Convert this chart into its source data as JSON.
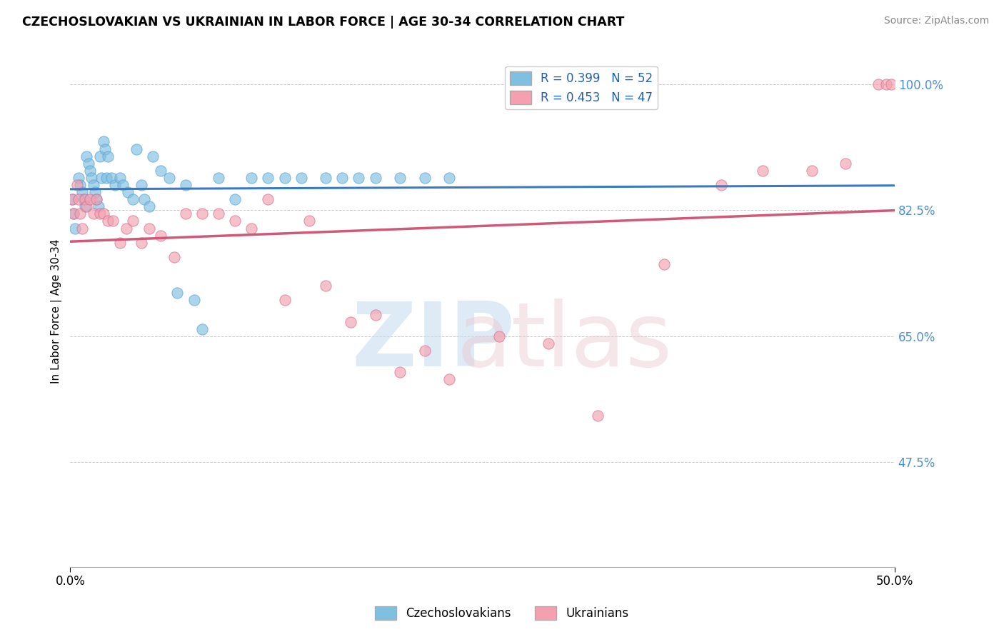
{
  "title": "CZECHOSLOVAKIAN VS UKRAINIAN IN LABOR FORCE | AGE 30-34 CORRELATION CHART",
  "source": "Source: ZipAtlas.com",
  "ylabel": "In Labor Force | Age 30-34",
  "xlim": [
    0.0,
    0.5
  ],
  "ylim": [
    0.33,
    1.04
  ],
  "ytick_positions": [
    0.475,
    0.65,
    0.825,
    1.0
  ],
  "R_czech": 0.399,
  "N_czech": 52,
  "R_ukr": 0.453,
  "N_ukr": 47,
  "czech_color": "#7fbfdf",
  "ukr_color": "#f4a0b0",
  "czech_line_color": "#3a7bbf",
  "ukr_line_color": "#d05878",
  "legend_labels": [
    "Czechoslovakians",
    "Ukrainians"
  ],
  "czech_x": [
    0.001,
    0.002,
    0.003,
    0.005,
    0.006,
    0.007,
    0.008,
    0.009,
    0.01,
    0.011,
    0.012,
    0.013,
    0.014,
    0.015,
    0.016,
    0.017,
    0.018,
    0.019,
    0.02,
    0.021,
    0.022,
    0.023,
    0.025,
    0.027,
    0.03,
    0.032,
    0.035,
    0.038,
    0.04,
    0.043,
    0.045,
    0.048,
    0.05,
    0.055,
    0.06,
    0.065,
    0.07,
    0.075,
    0.08,
    0.09,
    0.1,
    0.11,
    0.12,
    0.13,
    0.14,
    0.155,
    0.165,
    0.175,
    0.185,
    0.2,
    0.215,
    0.23
  ],
  "czech_y": [
    0.84,
    0.82,
    0.8,
    0.87,
    0.86,
    0.85,
    0.84,
    0.83,
    0.9,
    0.89,
    0.88,
    0.87,
    0.86,
    0.85,
    0.84,
    0.83,
    0.9,
    0.87,
    0.92,
    0.91,
    0.87,
    0.9,
    0.87,
    0.86,
    0.87,
    0.86,
    0.85,
    0.84,
    0.91,
    0.86,
    0.84,
    0.83,
    0.9,
    0.88,
    0.87,
    0.71,
    0.86,
    0.7,
    0.66,
    0.87,
    0.84,
    0.87,
    0.87,
    0.87,
    0.87,
    0.87,
    0.87,
    0.87,
    0.87,
    0.87,
    0.87,
    0.87
  ],
  "ukr_x": [
    0.001,
    0.002,
    0.004,
    0.005,
    0.006,
    0.007,
    0.009,
    0.01,
    0.012,
    0.014,
    0.016,
    0.018,
    0.02,
    0.023,
    0.026,
    0.03,
    0.034,
    0.038,
    0.043,
    0.048,
    0.055,
    0.063,
    0.07,
    0.08,
    0.09,
    0.1,
    0.11,
    0.12,
    0.13,
    0.145,
    0.155,
    0.17,
    0.185,
    0.2,
    0.215,
    0.23,
    0.26,
    0.29,
    0.32,
    0.36,
    0.395,
    0.42,
    0.45,
    0.47,
    0.49,
    0.495,
    0.498
  ],
  "ukr_y": [
    0.84,
    0.82,
    0.86,
    0.84,
    0.82,
    0.8,
    0.84,
    0.83,
    0.84,
    0.82,
    0.84,
    0.82,
    0.82,
    0.81,
    0.81,
    0.78,
    0.8,
    0.81,
    0.78,
    0.8,
    0.79,
    0.76,
    0.82,
    0.82,
    0.82,
    0.81,
    0.8,
    0.84,
    0.7,
    0.81,
    0.72,
    0.67,
    0.68,
    0.6,
    0.63,
    0.59,
    0.65,
    0.64,
    0.54,
    0.75,
    0.86,
    0.88,
    0.88,
    0.89,
    1.0,
    1.0,
    1.0
  ]
}
